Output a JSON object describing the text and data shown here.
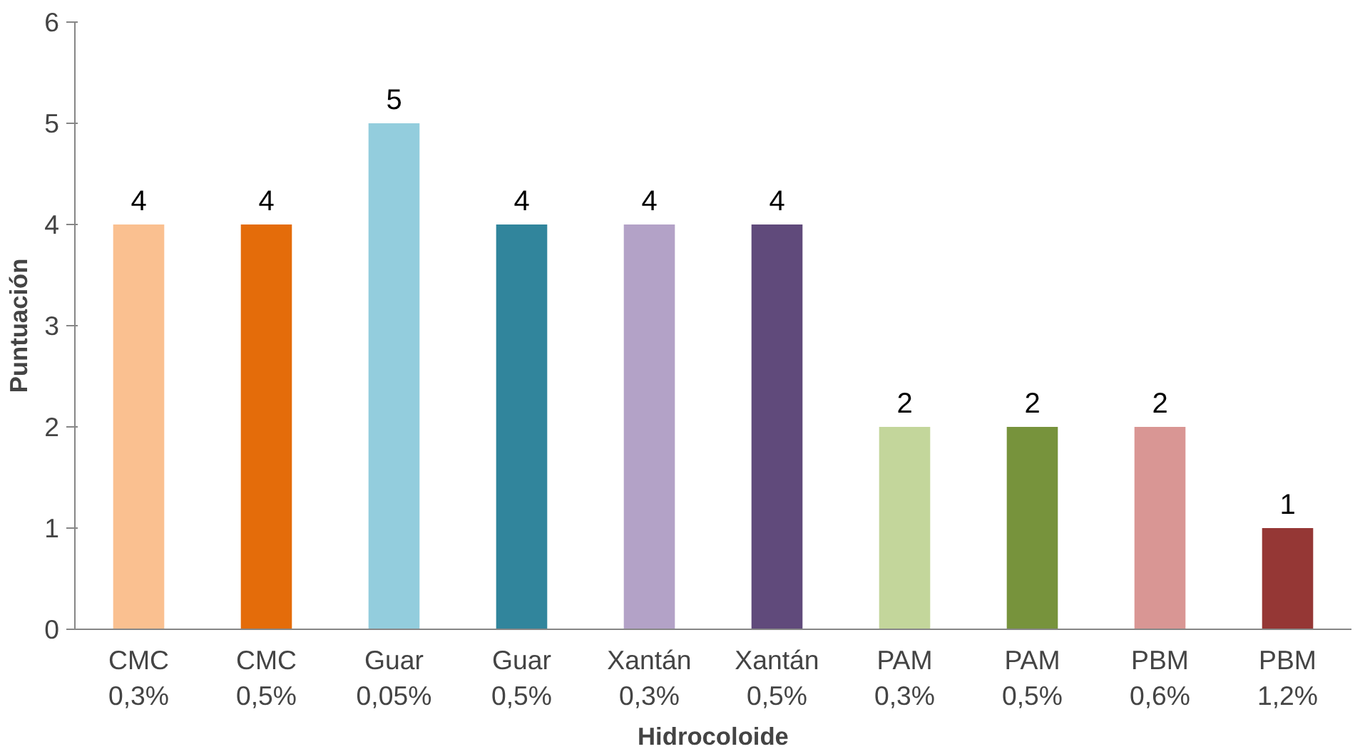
{
  "chart_data": {
    "type": "bar",
    "xlabel": "Hidrocoloide",
    "ylabel": "Puntuación",
    "categories": [
      "CMC\n0,3%",
      "CMC\n0,5%",
      "Guar\n0,05%",
      "Guar\n0,5%",
      "Xantán\n0,3%",
      "Xantán\n0,5%",
      "PAM\n0,3%",
      "PAM\n0,5%",
      "PBM\n0,6%",
      "PBM\n1,2%"
    ],
    "values": [
      4,
      4,
      5,
      4,
      4,
      4,
      2,
      2,
      2,
      1
    ],
    "colors": [
      "#fac090",
      "#e46c0a",
      "#93cddd",
      "#31859c",
      "#b3a2c7",
      "#604a7b",
      "#c3d69b",
      "#77933c",
      "#d99694",
      "#953735"
    ],
    "ylim": [
      0,
      6
    ],
    "yticks": [
      0,
      1,
      2,
      3,
      4,
      5,
      6
    ],
    "grid": false,
    "data_labels": true
  }
}
